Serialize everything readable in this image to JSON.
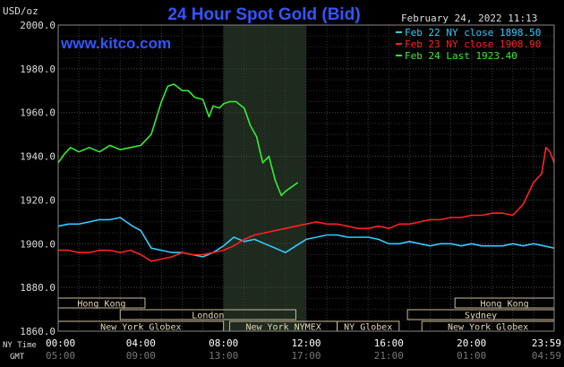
{
  "chart_data": {
    "type": "line",
    "title": "24 Hour Spot Gold (Bid)",
    "timestamp": "February 24, 2022 11:13",
    "watermark": "www.kitco.com",
    "ylabel": "USD/oz",
    "ylim": [
      1860,
      2000
    ],
    "yticks": [
      1860,
      1880,
      1900,
      1920,
      1940,
      1960,
      1980,
      2000
    ],
    "ytick_labels": [
      "1860.0",
      "1880.0",
      "1900.0",
      "1920.0",
      "1940.0",
      "1960.0",
      "1980.0",
      "2000.0"
    ],
    "xlim": [
      0,
      24
    ],
    "ny_time_label": "NY Time",
    "gmt_label": "GMT",
    "x_ticks_ny": [
      "00:00",
      "04:00",
      "08:00",
      "12:00",
      "16:00",
      "20:00",
      "23:59"
    ],
    "x_ticks_gmt": [
      "05:00",
      "09:00",
      "13:00",
      "17:00",
      "21:00",
      "01:00",
      "04:59"
    ],
    "x_tick_hours": [
      0,
      4,
      8,
      12,
      16,
      20,
      24
    ],
    "highlight_hours": [
      8,
      12
    ],
    "grid": true,
    "legend_position": "top-right",
    "legend": [
      {
        "label": "Feb 22 NY close 1898.50",
        "color": "#33ccff"
      },
      {
        "label": "Feb 23 NY close 1908.90",
        "color": "#ff2222"
      },
      {
        "label": "Feb 24 Last 1923.40",
        "color": "#33ee33"
      }
    ],
    "sessions": [
      {
        "label": "Hong Kong",
        "start": 0,
        "end": 4.2,
        "row": 0
      },
      {
        "label": "London",
        "start": 3,
        "end": 11.5,
        "row": 1
      },
      {
        "label": "New York Globex",
        "start": 0,
        "end": 8,
        "row": 2
      },
      {
        "label": "New York NYMEX",
        "start": 8.3,
        "end": 13.5,
        "row": 2
      },
      {
        "label": "NY Globex",
        "start": 13.5,
        "end": 16.5,
        "row": 2
      },
      {
        "label": "Hong Kong",
        "start": 19.2,
        "end": 24,
        "row": 0
      },
      {
        "label": "Sydney",
        "start": 16.9,
        "end": 24,
        "row": 1
      },
      {
        "label": "New York Globex",
        "start": 17.6,
        "end": 24,
        "row": 2
      }
    ],
    "series": [
      {
        "name": "Feb 22 NY close 1898.50",
        "color": "#33ccff",
        "x": [
          0,
          0.5,
          1,
          1.5,
          2,
          2.5,
          3,
          3.3,
          3.6,
          4,
          4.5,
          5,
          5.5,
          6,
          6.5,
          7,
          7.5,
          8,
          8.5,
          9,
          9.5,
          10,
          10.5,
          11,
          11.5,
          12,
          12.5,
          13,
          13.5,
          14,
          14.5,
          15,
          15.5,
          16,
          16.5,
          17,
          17.5,
          18,
          18.5,
          19,
          19.5,
          20,
          20.5,
          21,
          21.5,
          22,
          22.5,
          23,
          23.5,
          24
        ],
        "y": [
          1908,
          1909,
          1909,
          1910,
          1911,
          1911,
          1912,
          1910,
          1908,
          1906,
          1898,
          1897,
          1896,
          1896,
          1895,
          1894,
          1896,
          1899,
          1903,
          1901,
          1902,
          1900,
          1898,
          1896,
          1899,
          1902,
          1903,
          1904,
          1904,
          1903,
          1903,
          1903,
          1902,
          1900,
          1900,
          1901,
          1900,
          1899,
          1900,
          1900,
          1899,
          1900,
          1899,
          1899,
          1899,
          1900,
          1899,
          1900,
          1899,
          1898
        ]
      },
      {
        "name": "Feb 23 NY close 1908.90",
        "color": "#ff2222",
        "x": [
          0,
          0.5,
          1,
          1.5,
          2,
          2.5,
          3,
          3.5,
          4,
          4.5,
          5,
          5.5,
          6,
          6.5,
          7,
          7.5,
          8,
          8.5,
          9,
          9.5,
          10,
          10.5,
          11,
          11.5,
          12,
          12.5,
          13,
          13.5,
          14,
          14.5,
          15,
          15.5,
          16,
          16.5,
          17,
          17.5,
          18,
          18.5,
          19,
          19.5,
          20,
          20.5,
          21,
          21.5,
          22,
          22.5,
          23,
          23.2,
          23.4,
          23.6,
          23.8,
          24
        ],
        "y": [
          1897,
          1897,
          1896,
          1896,
          1897,
          1897,
          1896,
          1897,
          1895,
          1892,
          1893,
          1894,
          1896,
          1895,
          1895,
          1896,
          1897,
          1899,
          1902,
          1904,
          1905,
          1906,
          1907,
          1908,
          1909,
          1910,
          1909,
          1909,
          1908,
          1907,
          1907,
          1908,
          1907,
          1909,
          1909,
          1910,
          1911,
          1911,
          1912,
          1912,
          1913,
          1913,
          1914,
          1914,
          1913,
          1918,
          1928,
          1930,
          1932,
          1944,
          1942,
          1937
        ]
      },
      {
        "name": "Feb 24 Last 1923.40",
        "color": "#33ee33",
        "x": [
          0,
          0.3,
          0.6,
          1,
          1.5,
          2,
          2.5,
          3,
          3.5,
          4,
          4.5,
          5,
          5.3,
          5.6,
          6,
          6.3,
          6.6,
          7,
          7.3,
          7.5,
          7.8,
          8,
          8.3,
          8.6,
          9,
          9.3,
          9.6,
          9.9,
          10.2,
          10.5,
          10.8,
          11,
          11.3,
          11.6
        ],
        "y": [
          1937,
          1941,
          1944,
          1942,
          1944,
          1942,
          1945,
          1943,
          1944,
          1945,
          1950,
          1965,
          1972,
          1973,
          1970,
          1970,
          1967,
          1966,
          1958,
          1963,
          1962,
          1964,
          1965,
          1965,
          1962,
          1954,
          1949,
          1937,
          1940,
          1929,
          1922,
          1924,
          1926,
          1928
        ]
      }
    ]
  }
}
